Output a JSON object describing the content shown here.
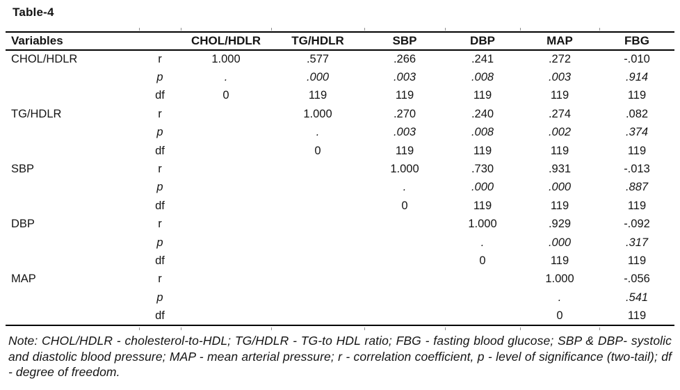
{
  "page": {
    "title": "Table-4"
  },
  "table": {
    "headers": [
      "Variables",
      "",
      "CHOL/HDLR",
      "TG/HDLR",
      "SBP",
      "DBP",
      "MAP",
      "FBG"
    ],
    "groups": [
      {
        "variable": "CHOL/HDLR",
        "rows": [
          {
            "stat": "r",
            "values": [
              "1.000",
              ".577",
              ".266",
              ".241",
              ".272",
              "-.010"
            ]
          },
          {
            "stat": "p",
            "values": [
              ".",
              ".000",
              ".003",
              ".008",
              ".003",
              ".914"
            ]
          },
          {
            "stat": "df",
            "values": [
              "0",
              "119",
              "119",
              "119",
              "119",
              "119"
            ]
          }
        ]
      },
      {
        "variable": "TG/HDLR",
        "rows": [
          {
            "stat": "r",
            "values": [
              "",
              "1.000",
              ".270",
              ".240",
              ".274",
              ".082"
            ]
          },
          {
            "stat": "p",
            "values": [
              "",
              ".",
              ".003",
              ".008",
              ".002",
              ".374"
            ]
          },
          {
            "stat": "df",
            "values": [
              "",
              "0",
              "119",
              "119",
              "119",
              "119"
            ]
          }
        ]
      },
      {
        "variable": "SBP",
        "rows": [
          {
            "stat": "r",
            "values": [
              "",
              "",
              "1.000",
              ".730",
              ".931",
              "-.013"
            ]
          },
          {
            "stat": "p",
            "values": [
              "",
              "",
              ".",
              ".000",
              ".000",
              ".887"
            ]
          },
          {
            "stat": "df",
            "values": [
              "",
              "",
              "0",
              "119",
              "119",
              "119"
            ]
          }
        ]
      },
      {
        "variable": "DBP",
        "rows": [
          {
            "stat": "r",
            "values": [
              "",
              "",
              "",
              "1.000",
              ".929",
              "-.092"
            ]
          },
          {
            "stat": "p",
            "values": [
              "",
              "",
              "",
              ".",
              ".000",
              ".317"
            ]
          },
          {
            "stat": "df",
            "values": [
              "",
              "",
              "",
              "0",
              "119",
              "119"
            ]
          }
        ]
      },
      {
        "variable": "MAP",
        "rows": [
          {
            "stat": "r",
            "values": [
              "",
              "",
              "",
              "",
              "1.000",
              "-.056"
            ]
          },
          {
            "stat": "p",
            "values": [
              "",
              "",
              "",
              "",
              ".",
              ".541"
            ]
          },
          {
            "stat": "df",
            "values": [
              "",
              "",
              "",
              "",
              "0",
              "119"
            ]
          }
        ]
      }
    ]
  },
  "note": {
    "text": "Note: CHOL/HDLR - cholesterol-to-HDL; TG/HDLR - TG-to HDL ratio; FBG - fasting blood glucose; SBP & DBP- systolic and diastolic blood pressure; MAP - mean arterial pressure; r - correlation coefficient, p - level of significance (two-tail); df - degree of freedom."
  },
  "colors": {
    "text": "#141414",
    "rule": "#000000",
    "tick": "#8f8f8f"
  }
}
